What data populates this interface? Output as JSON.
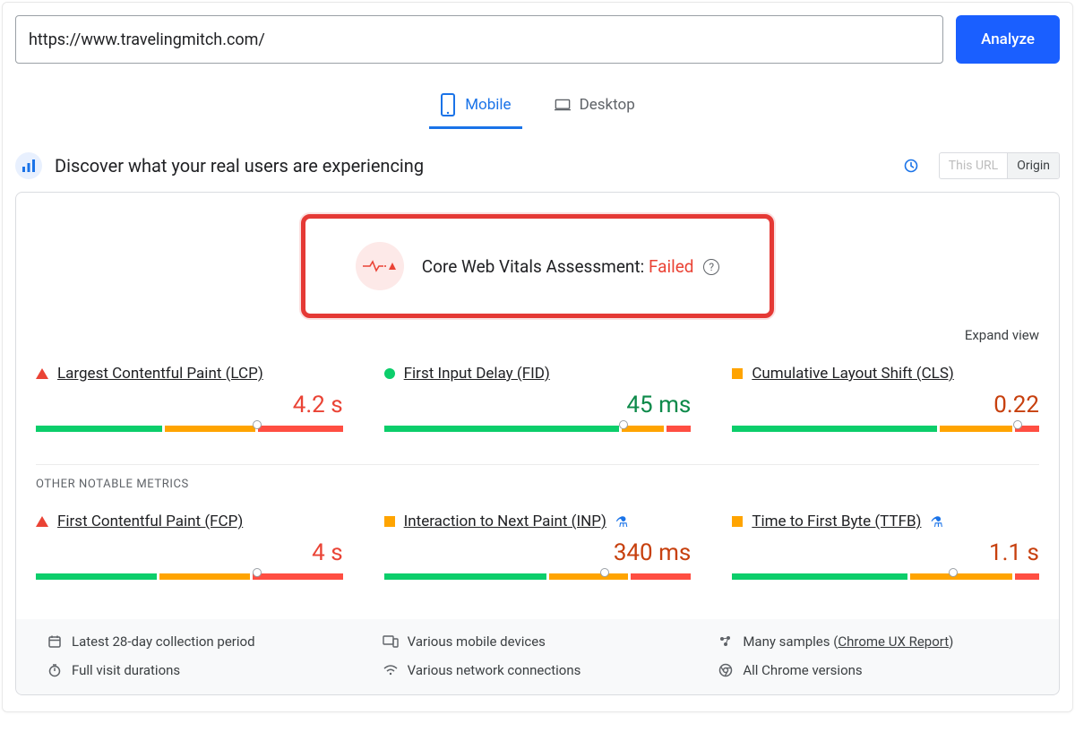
{
  "search": {
    "url_value": "https://www.travelingmitch.com/",
    "analyze_label": "Analyze"
  },
  "tabs": {
    "mobile": "Mobile",
    "desktop": "Desktop",
    "active": "mobile"
  },
  "section": {
    "title": "Discover what your real users are experiencing",
    "toggle_url": "This URL",
    "toggle_origin": "Origin"
  },
  "assessment": {
    "label": "Core Web Vitals Assessment: ",
    "status": "Failed",
    "status_color": "#ea4335",
    "highlight_border": "#e53935",
    "icon_bg": "#fde9e8",
    "icon_stroke": "#ea4335"
  },
  "expand_label": "Expand view",
  "colors": {
    "good": "#0cce6b",
    "needs_improvement": "#ffa400",
    "poor": "#ff4e42"
  },
  "core_metrics": [
    {
      "key": "lcp",
      "shape": "triangle",
      "title": "Largest Contentful Paint (LCP)",
      "value": "4.2 s",
      "value_class": "v-red",
      "segments": [
        42,
        30,
        28
      ],
      "marker_pct": 72,
      "flask": false
    },
    {
      "key": "fid",
      "shape": "circle",
      "title": "First Input Delay (FID)",
      "value": "45 ms",
      "value_class": "v-green",
      "segments": [
        78,
        14,
        8
      ],
      "marker_pct": 78,
      "flask": false
    },
    {
      "key": "cls",
      "shape": "square",
      "title": "Cumulative Layout Shift (CLS)",
      "value": "0.22",
      "value_class": "v-orange",
      "segments": [
        68,
        24,
        8
      ],
      "marker_pct": 93,
      "flask": false
    }
  ],
  "other_label": "OTHER NOTABLE METRICS",
  "other_metrics": [
    {
      "key": "fcp",
      "shape": "triangle",
      "title": "First Contentful Paint (FCP)",
      "value": "4 s",
      "value_class": "v-red",
      "segments": [
        40,
        30,
        30
      ],
      "marker_pct": 72,
      "flask": false
    },
    {
      "key": "inp",
      "shape": "square",
      "title": "Interaction to Next Paint (INP)",
      "value": "340 ms",
      "value_class": "v-orange",
      "segments": [
        54,
        26,
        20
      ],
      "marker_pct": 72,
      "flask": true
    },
    {
      "key": "ttfb",
      "shape": "square",
      "title": "Time to First Byte (TTFB)",
      "value": "1.1 s",
      "value_class": "v-orange",
      "segments": [
        58,
        34,
        8
      ],
      "marker_pct": 72,
      "flask": true
    }
  ],
  "footer": {
    "period": "Latest 28-day collection period",
    "devices": "Various mobile devices",
    "samples_prefix": "Many samples (",
    "samples_link": "Chrome UX Report",
    "samples_suffix": ")",
    "durations": "Full visit durations",
    "network": "Various network connections",
    "versions": "All Chrome versions"
  }
}
